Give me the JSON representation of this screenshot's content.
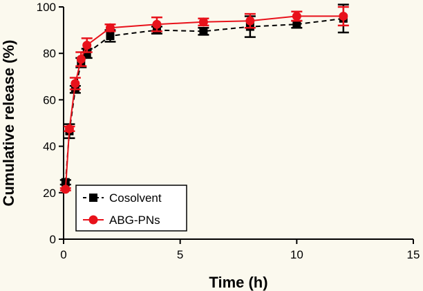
{
  "chart_data": {
    "type": "line",
    "title": "",
    "xlabel": "Time (h)",
    "ylabel": "Cumulative release (%)",
    "xlim": [
      0,
      15
    ],
    "ylim": [
      0,
      100
    ],
    "xticks": [
      0,
      5,
      10,
      15
    ],
    "yticks": [
      0,
      20,
      40,
      60,
      80,
      100
    ],
    "grid": false,
    "legend_position": "bottom-left",
    "series": [
      {
        "name": "Cosolvent",
        "color": "#000000",
        "marker": "square",
        "line_style": "dashed",
        "x": [
          0.083,
          0.25,
          0.5,
          0.75,
          1,
          2,
          4,
          6,
          8,
          10,
          12
        ],
        "y": [
          24.5,
          46.5,
          64.5,
          76,
          80,
          87.5,
          90,
          89.5,
          91.5,
          92.5,
          95
        ],
        "error": [
          1,
          3,
          1.5,
          2,
          2,
          2.5,
          1.5,
          1.5,
          4.5,
          1.5,
          6
        ]
      },
      {
        "name": "ABG-PNs",
        "color": "#e8121b",
        "marker": "circle",
        "line_style": "solid",
        "x": [
          0.083,
          0.25,
          0.5,
          0.75,
          1,
          2,
          4,
          6,
          8,
          10,
          12
        ],
        "y": [
          21.5,
          47.5,
          67,
          77.5,
          83.5,
          91,
          92.5,
          93.5,
          94,
          96,
          96
        ],
        "error": [
          0.5,
          1,
          2.5,
          3,
          3,
          1.5,
          3,
          1.5,
          3,
          2,
          4
        ]
      }
    ]
  }
}
